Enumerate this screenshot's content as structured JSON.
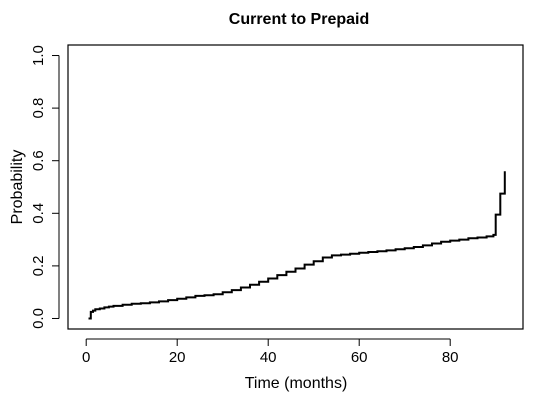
{
  "chart_data": {
    "type": "line",
    "line_shape": "step",
    "title": "Current to Prepaid",
    "xlabel": "Time (months)",
    "ylabel": "Probability",
    "xlim": [
      -4,
      96
    ],
    "ylim": [
      -0.04,
      1.04
    ],
    "x_ticks": [
      0,
      20,
      40,
      60,
      80
    ],
    "y_ticks": [
      0.0,
      0.2,
      0.4,
      0.6,
      0.8,
      1.0
    ],
    "x_tick_labels": [
      "0",
      "20",
      "40",
      "60",
      "80"
    ],
    "y_tick_labels": [
      "0.0",
      "0.2",
      "0.4",
      "0.6",
      "0.8",
      "1.0"
    ],
    "grid": false,
    "box": true,
    "series": [
      {
        "color": "#000000",
        "x": [
          0.5,
          1,
          1.5,
          2,
          3,
          4,
          5,
          6,
          8,
          10,
          12,
          14,
          16,
          18,
          20,
          22,
          24,
          26,
          28,
          30,
          32,
          34,
          36,
          38,
          40,
          42,
          44,
          46,
          48,
          50,
          52,
          54,
          56,
          58,
          60,
          62,
          64,
          66,
          68,
          70,
          72,
          74,
          76,
          78,
          80,
          82,
          84,
          86,
          88,
          89.5,
          90,
          90.5,
          91,
          91.5,
          92
        ],
        "y": [
          0.0,
          0.025,
          0.03,
          0.035,
          0.038,
          0.042,
          0.045,
          0.048,
          0.052,
          0.056,
          0.058,
          0.061,
          0.065,
          0.07,
          0.075,
          0.08,
          0.086,
          0.088,
          0.092,
          0.1,
          0.108,
          0.118,
          0.128,
          0.14,
          0.152,
          0.165,
          0.178,
          0.19,
          0.205,
          0.218,
          0.232,
          0.24,
          0.243,
          0.246,
          0.25,
          0.253,
          0.256,
          0.259,
          0.263,
          0.267,
          0.272,
          0.278,
          0.285,
          0.292,
          0.296,
          0.3,
          0.305,
          0.308,
          0.312,
          0.318,
          0.395,
          0.395,
          0.475,
          0.475,
          0.56
        ]
      }
    ]
  }
}
